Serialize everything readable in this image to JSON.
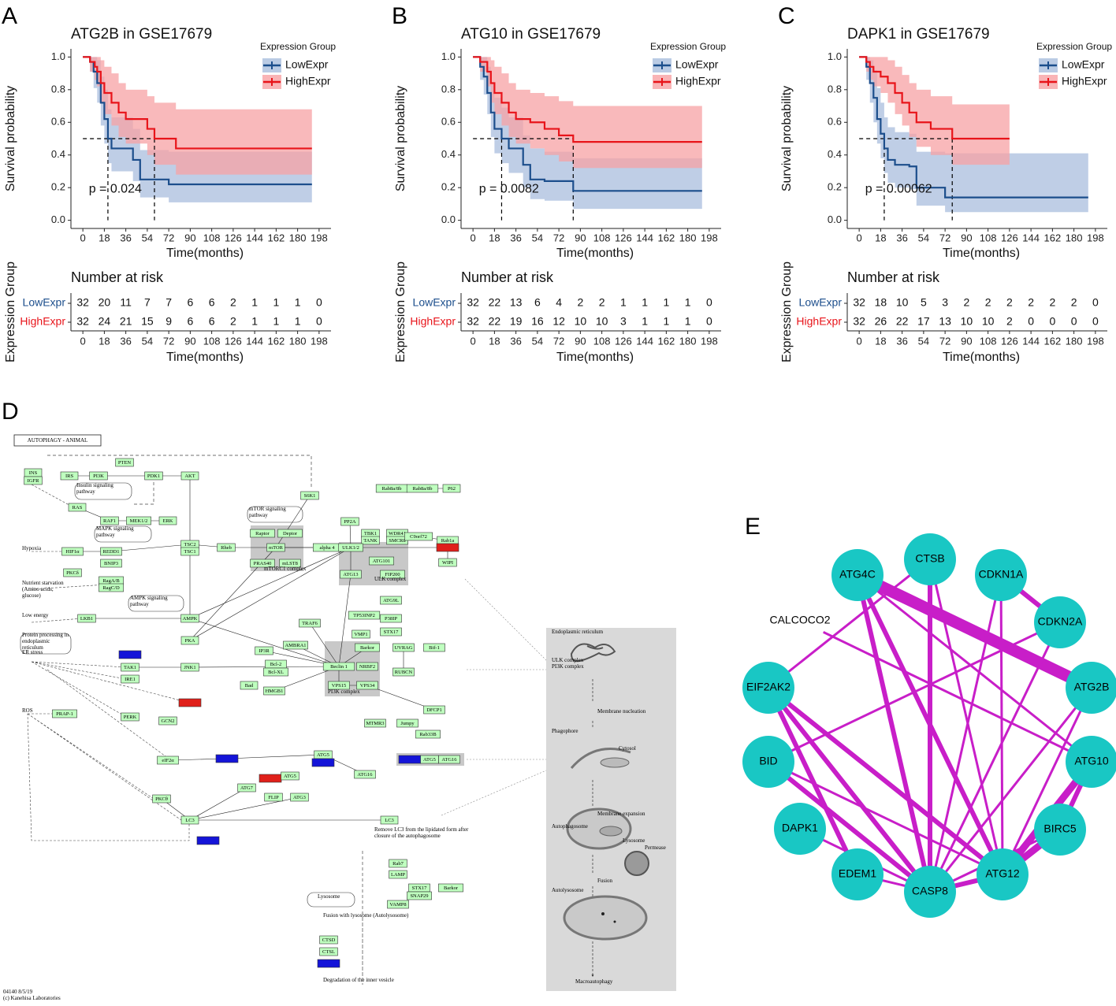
{
  "chart_data": [
    {
      "type": "survival",
      "panel": "A",
      "title": "ATG2B in GSE17679",
      "xlabel": "Time(months)",
      "ylabel": "Survival probability",
      "legend_title": "Expression Group",
      "annotation": "p = 0.024",
      "risk_title": "Number at risk",
      "risk_ylabel": "Expression Group",
      "xlim": [
        -10,
        208
      ],
      "ylim": [
        -0.05,
        1.05
      ],
      "xticks": [
        0,
        18,
        36,
        54,
        72,
        90,
        108,
        126,
        144,
        162,
        180,
        198
      ],
      "yticks": [
        {
          "value": 0,
          "label": "0.0"
        },
        0.2,
        0.4,
        0.6,
        0.8,
        {
          "value": 1,
          "label": "1.0"
        }
      ],
      "series": [
        {
          "name": "LowExpr",
          "color": "#1c4e8c",
          "band_color": "#a9bedd",
          "x": [
            0,
            6,
            9,
            12,
            15,
            18,
            21,
            24,
            42,
            48,
            72,
            192
          ],
          "values": [
            1,
            0.97,
            0.91,
            0.84,
            0.72,
            0.62,
            0.5,
            0.44,
            0.37,
            0.25,
            0.22,
            0.22
          ],
          "lower": [
            1,
            0.91,
            0.81,
            0.72,
            0.58,
            0.47,
            0.35,
            0.3,
            0.24,
            0.14,
            0.11,
            0.11
          ],
          "upper": [
            1,
            1,
            1,
            0.98,
            0.88,
            0.8,
            0.68,
            0.63,
            0.56,
            0.43,
            0.42,
            0.42
          ],
          "at_risk": [
            32,
            20,
            11,
            7,
            7,
            6,
            6,
            2,
            1,
            1,
            1,
            0
          ]
        },
        {
          "name": "HighExpr",
          "color": "#e8141a",
          "band_color": "#f7a1a4",
          "x": [
            0,
            6,
            10,
            12,
            15,
            18,
            24,
            30,
            36,
            54,
            60,
            78,
            192
          ],
          "values": [
            1,
            0.97,
            0.94,
            0.91,
            0.84,
            0.78,
            0.72,
            0.66,
            0.62,
            0.56,
            0.5,
            0.44,
            0.44
          ],
          "lower": [
            1,
            0.91,
            0.86,
            0.82,
            0.72,
            0.65,
            0.58,
            0.51,
            0.47,
            0.4,
            0.34,
            0.28,
            0.28
          ],
          "upper": [
            1,
            1,
            1,
            1,
            0.98,
            0.94,
            0.9,
            0.84,
            0.8,
            0.76,
            0.72,
            0.68,
            0.68
          ],
          "at_risk": [
            32,
            24,
            21,
            15,
            9,
            6,
            6,
            2,
            1,
            1,
            1,
            0
          ]
        }
      ]
    },
    {
      "type": "survival",
      "panel": "B",
      "title": "ATG10 in GSE17679",
      "xlabel": "Time(months)",
      "ylabel": "Survival probability",
      "legend_title": "Expression Group",
      "annotation": "p = 0.0082",
      "risk_title": "Number at risk",
      "risk_ylabel": "Expression Group",
      "xlim": [
        -10,
        208
      ],
      "ylim": [
        -0.05,
        1.05
      ],
      "xticks": [
        0,
        18,
        36,
        54,
        72,
        90,
        108,
        126,
        144,
        162,
        180,
        198
      ],
      "yticks": [
        {
          "value": 0,
          "label": "0.0"
        },
        0.2,
        0.4,
        0.6,
        0.8,
        {
          "value": 1,
          "label": "1.0"
        }
      ],
      "series": [
        {
          "name": "LowExpr",
          "color": "#1c4e8c",
          "band_color": "#a9bedd",
          "x": [
            0,
            6,
            9,
            12,
            15,
            18,
            24,
            30,
            42,
            48,
            60,
            84,
            192
          ],
          "values": [
            1,
            0.94,
            0.88,
            0.78,
            0.66,
            0.56,
            0.5,
            0.44,
            0.34,
            0.25,
            0.24,
            0.18,
            0.18
          ],
          "lower": [
            1,
            0.86,
            0.77,
            0.65,
            0.51,
            0.41,
            0.35,
            0.29,
            0.2,
            0.13,
            0.12,
            0.07,
            0.07
          ],
          "upper": [
            1,
            1,
            1,
            0.94,
            0.84,
            0.75,
            0.69,
            0.63,
            0.52,
            0.44,
            0.42,
            0.38,
            0.38
          ],
          "at_risk": [
            32,
            22,
            13,
            6,
            4,
            2,
            2,
            1,
            1,
            1,
            1,
            0
          ]
        },
        {
          "name": "HighExpr",
          "color": "#e8141a",
          "band_color": "#f7a1a4",
          "x": [
            0,
            6,
            12,
            15,
            18,
            24,
            30,
            36,
            48,
            60,
            72,
            84,
            192
          ],
          "values": [
            1,
            0.97,
            0.91,
            0.84,
            0.78,
            0.72,
            0.66,
            0.62,
            0.6,
            0.56,
            0.52,
            0.48,
            0.48
          ],
          "lower": [
            1,
            0.91,
            0.82,
            0.72,
            0.65,
            0.58,
            0.51,
            0.47,
            0.44,
            0.4,
            0.36,
            0.32,
            0.32
          ],
          "upper": [
            1,
            1,
            1,
            0.98,
            0.94,
            0.9,
            0.84,
            0.8,
            0.78,
            0.76,
            0.73,
            0.7,
            0.7
          ],
          "at_risk": [
            32,
            22,
            19,
            16,
            12,
            10,
            10,
            3,
            1,
            1,
            1,
            0
          ]
        }
      ]
    },
    {
      "type": "survival",
      "panel": "C",
      "title": "DAPK1 in GSE17679",
      "xlabel": "Time(months)",
      "ylabel": "Survival probability",
      "legend_title": "Expression Group",
      "annotation": "p = 0.00062",
      "risk_title": "Number at risk",
      "risk_ylabel": "Expression Group",
      "xlim": [
        -10,
        208
      ],
      "ylim": [
        -0.05,
        1.05
      ],
      "xticks": [
        0,
        18,
        36,
        54,
        72,
        90,
        108,
        126,
        144,
        162,
        180,
        198
      ],
      "yticks": [
        {
          "value": 0,
          "label": "0.0"
        },
        0.2,
        0.4,
        0.6,
        0.8,
        {
          "value": 1,
          "label": "1.0"
        }
      ],
      "series": [
        {
          "name": "LowExpr",
          "color": "#1c4e8c",
          "band_color": "#a9bedd",
          "x": [
            0,
            6,
            9,
            12,
            15,
            18,
            21,
            24,
            30,
            42,
            48,
            72,
            192
          ],
          "values": [
            1,
            0.94,
            0.84,
            0.75,
            0.62,
            0.53,
            0.44,
            0.37,
            0.34,
            0.33,
            0.2,
            0.14,
            0.14
          ],
          "lower": [
            1,
            0.86,
            0.72,
            0.6,
            0.47,
            0.38,
            0.29,
            0.23,
            0.2,
            0.19,
            0.09,
            0.05,
            0.05
          ],
          "upper": [
            1,
            1,
            0.98,
            0.92,
            0.81,
            0.72,
            0.63,
            0.57,
            0.54,
            0.53,
            0.42,
            0.41,
            0.41
          ],
          "at_risk": [
            32,
            18,
            10,
            5,
            3,
            2,
            2,
            2,
            2,
            2,
            2,
            0
          ]
        },
        {
          "name": "HighExpr",
          "color": "#e8141a",
          "band_color": "#f7a1a4",
          "x": [
            0,
            6,
            9,
            12,
            18,
            24,
            30,
            36,
            42,
            48,
            60,
            78,
            126
          ],
          "values": [
            1,
            0.97,
            0.94,
            0.91,
            0.88,
            0.84,
            0.78,
            0.72,
            0.66,
            0.6,
            0.56,
            0.5,
            0.5
          ],
          "lower": [
            1,
            0.91,
            0.86,
            0.82,
            0.78,
            0.72,
            0.65,
            0.58,
            0.51,
            0.45,
            0.4,
            0.34,
            0.34
          ],
          "upper": [
            1,
            1,
            1,
            1,
            1,
            0.98,
            0.94,
            0.89,
            0.84,
            0.8,
            0.76,
            0.71,
            0.71
          ],
          "at_risk": [
            32,
            26,
            22,
            17,
            13,
            10,
            10,
            2,
            0,
            0,
            0,
            0
          ]
        }
      ]
    }
  ],
  "pathway": {
    "panel": "D",
    "title": "AUTOPHAGY - ANIMAL",
    "node_color": "#bfffbf",
    "nodes": [
      {
        "label": "INS"
      },
      {
        "label": "IGFR"
      },
      {
        "label": "IRS"
      },
      {
        "label": "PI3K"
      },
      {
        "label": "PTEN"
      },
      {
        "label": "PDK1"
      },
      {
        "label": "AKT"
      },
      {
        "label": "RAS"
      },
      {
        "label": "RAF1"
      },
      {
        "label": "MEK1/2"
      },
      {
        "label": "ERK"
      },
      {
        "label": "S6K1"
      },
      {
        "label": "Raptor"
      },
      {
        "label": "mTOR"
      },
      {
        "label": "Deptor"
      },
      {
        "label": "PRAS40"
      },
      {
        "label": "mLST8"
      },
      {
        "label": "TSC2"
      },
      {
        "label": "TSC1"
      },
      {
        "label": "Rheb"
      },
      {
        "label": "HIF1α"
      },
      {
        "label": "REDD1"
      },
      {
        "label": "BNIP3"
      },
      {
        "label": "PKCδ"
      },
      {
        "label": "RagA/B"
      },
      {
        "label": "RagC/D"
      },
      {
        "label": "LKB1"
      },
      {
        "label": "AMPK"
      },
      {
        "label": "PKA"
      },
      {
        "label": null,
        "color": "#1414d8"
      },
      {
        "label": "TAK1"
      },
      {
        "label": "IRE1"
      },
      {
        "label": "JNK1"
      },
      {
        "label": null,
        "color": "#e0201a"
      },
      {
        "label": "PERK"
      },
      {
        "label": "GCN2"
      },
      {
        "label": "PRAP-1"
      },
      {
        "label": "eIF2α"
      },
      {
        "label": null,
        "color": "#1414d8"
      },
      {
        "label": "ATG7"
      },
      {
        "label": null,
        "color": "#e0201a"
      },
      {
        "label": "ATG5"
      },
      {
        "label": "FLIP"
      },
      {
        "label": "ATG3"
      },
      {
        "label": "ATG5"
      },
      {
        "label": null,
        "color": "#1414d8"
      },
      {
        "label": "ATG16"
      },
      {
        "label": "PKCθ"
      },
      {
        "label": "LC3"
      },
      {
        "label": "LC3"
      },
      {
        "label": null,
        "color": "#1414d8"
      },
      {
        "label": "PP2A"
      },
      {
        "label": "alpha 4"
      },
      {
        "label": "TBK1"
      },
      {
        "label": "TANK"
      },
      {
        "label": "WDR41"
      },
      {
        "label": "SMCR8"
      },
      {
        "label": "C9orf72"
      },
      {
        "label": "Rab1a"
      },
      {
        "label": "Rab8a/8b"
      },
      {
        "label": "Rab8a/8b"
      },
      {
        "label": "P62"
      },
      {
        "label": "ULK1/2"
      },
      {
        "label": "ATG101"
      },
      {
        "label": "ATG13"
      },
      {
        "label": "FIP200"
      },
      {
        "label": null,
        "color": "#e0201a"
      },
      {
        "label": "WIPI"
      },
      {
        "label": "ATG9L"
      },
      {
        "label": "IP3R"
      },
      {
        "label": "Bcl-2"
      },
      {
        "label": "Bcl-XL"
      },
      {
        "label": "TRAF6"
      },
      {
        "label": "AMBRA1"
      },
      {
        "label": "TP53INP2"
      },
      {
        "label": "VMP1"
      },
      {
        "label": "P38IP"
      },
      {
        "label": "STX17"
      },
      {
        "label": "Barkor"
      },
      {
        "label": "UVRAG"
      },
      {
        "label": "Bif-1"
      },
      {
        "label": "Beclin 1"
      },
      {
        "label": "NRBF2"
      },
      {
        "label": "VPS15"
      },
      {
        "label": "VPS34"
      },
      {
        "label": "RUBCN"
      },
      {
        "label": "Bad"
      },
      {
        "label": "HMGB1"
      },
      {
        "label": "DFCP1"
      },
      {
        "label": "MTMR3"
      },
      {
        "label": "Jumpy"
      },
      {
        "label": "Rab33B"
      },
      {
        "label": null,
        "color": "#1414d8"
      },
      {
        "label": "ATG5"
      },
      {
        "label": "ATG16"
      },
      {
        "label": "Rab7"
      },
      {
        "label": "LAMP"
      },
      {
        "label": "STX17"
      },
      {
        "label": "SNAP29"
      },
      {
        "label": "Barkor"
      },
      {
        "label": "VAMP8"
      },
      {
        "label": "CTSD"
      },
      {
        "label": "CTSL"
      },
      {
        "label": null,
        "color": "#1414d8"
      }
    ],
    "labels": [
      "Insulin signaling pathway",
      "MAPK signaling pathway",
      "mTOR signaling pathway",
      "AMPK signaling pathway",
      "Protein processing in endoplasmic reticulum",
      "Hypoxia",
      "Nutrient starvation (Amino acids, glucose)",
      "Low energy",
      "ER stress",
      "ROS",
      "mTORC1 complex",
      "ULK complex",
      "PI3K complex",
      "Lysosome",
      "Remove LC3 from the lipidated form after closure of the autophagosome",
      "Fusion with lysosome (Autolysosome)",
      "Degradation of the inner vesicle",
      "Endoplasmic reticulum",
      "ULK complex",
      "PI3K complex",
      "Membrane nucleation",
      "Phagophore",
      "Cytosol",
      "Membrane expansion",
      "Autophagosome",
      "Lysosome",
      "Permease",
      "Fusion",
      "Autolysosome",
      "Macroautophagy",
      "04140 8/5/19",
      "(c) Kanehisa Laboratories"
    ]
  },
  "network": {
    "panel": "E",
    "node_color": "#19c7c4",
    "edge_color": "#c81ec8",
    "nodes": [
      {
        "label": "CTSB"
      },
      {
        "label": "CDKN1A"
      },
      {
        "label": "CDKN2A"
      },
      {
        "label": "ATG2B"
      },
      {
        "label": "ATG10"
      },
      {
        "label": "BIRC5"
      },
      {
        "label": "ATG12"
      },
      {
        "label": "CASP8"
      },
      {
        "label": "EDEM1"
      },
      {
        "label": "DAPK1"
      },
      {
        "label": "BID"
      },
      {
        "label": "EIF2AK2"
      },
      {
        "label": "CALCOCO2",
        "color": "#ffffff"
      },
      {
        "label": "ATG4C"
      }
    ],
    "edges": [
      {
        "source": 13,
        "target": 3,
        "weight": 5
      },
      {
        "source": 13,
        "target": 7,
        "weight": 2
      },
      {
        "source": 13,
        "target": 6,
        "weight": 2
      },
      {
        "source": 13,
        "target": 4,
        "weight": 1
      },
      {
        "source": 0,
        "target": 7,
        "weight": 2
      },
      {
        "source": 0,
        "target": 11,
        "weight": 1
      },
      {
        "source": 0,
        "target": 6,
        "weight": 1
      },
      {
        "source": 1,
        "target": 2,
        "weight": 2
      },
      {
        "source": 1,
        "target": 7,
        "weight": 1
      },
      {
        "source": 1,
        "target": 6,
        "weight": 1
      },
      {
        "source": 2,
        "target": 7,
        "weight": 1
      },
      {
        "source": 2,
        "target": 10,
        "weight": 1
      },
      {
        "source": 3,
        "target": 6,
        "weight": 1
      },
      {
        "source": 3,
        "target": 7,
        "weight": 1
      },
      {
        "source": 12,
        "target": 4,
        "weight": 1
      },
      {
        "source": 11,
        "target": 8,
        "weight": 2
      },
      {
        "source": 11,
        "target": 7,
        "weight": 2
      },
      {
        "source": 11,
        "target": 6,
        "weight": 2
      },
      {
        "source": 10,
        "target": 7,
        "weight": 2
      },
      {
        "source": 10,
        "target": 6,
        "weight": 1
      },
      {
        "source": 9,
        "target": 7,
        "weight": 1
      },
      {
        "source": 8,
        "target": 7,
        "weight": 1
      },
      {
        "source": 4,
        "target": 6,
        "weight": 3
      },
      {
        "source": 5,
        "target": 6,
        "weight": 3
      },
      {
        "source": 5,
        "target": 7,
        "weight": 1
      },
      {
        "source": 7,
        "target": 6,
        "weight": 2
      },
      {
        "source": 4,
        "target": 5,
        "weight": 2
      }
    ]
  }
}
